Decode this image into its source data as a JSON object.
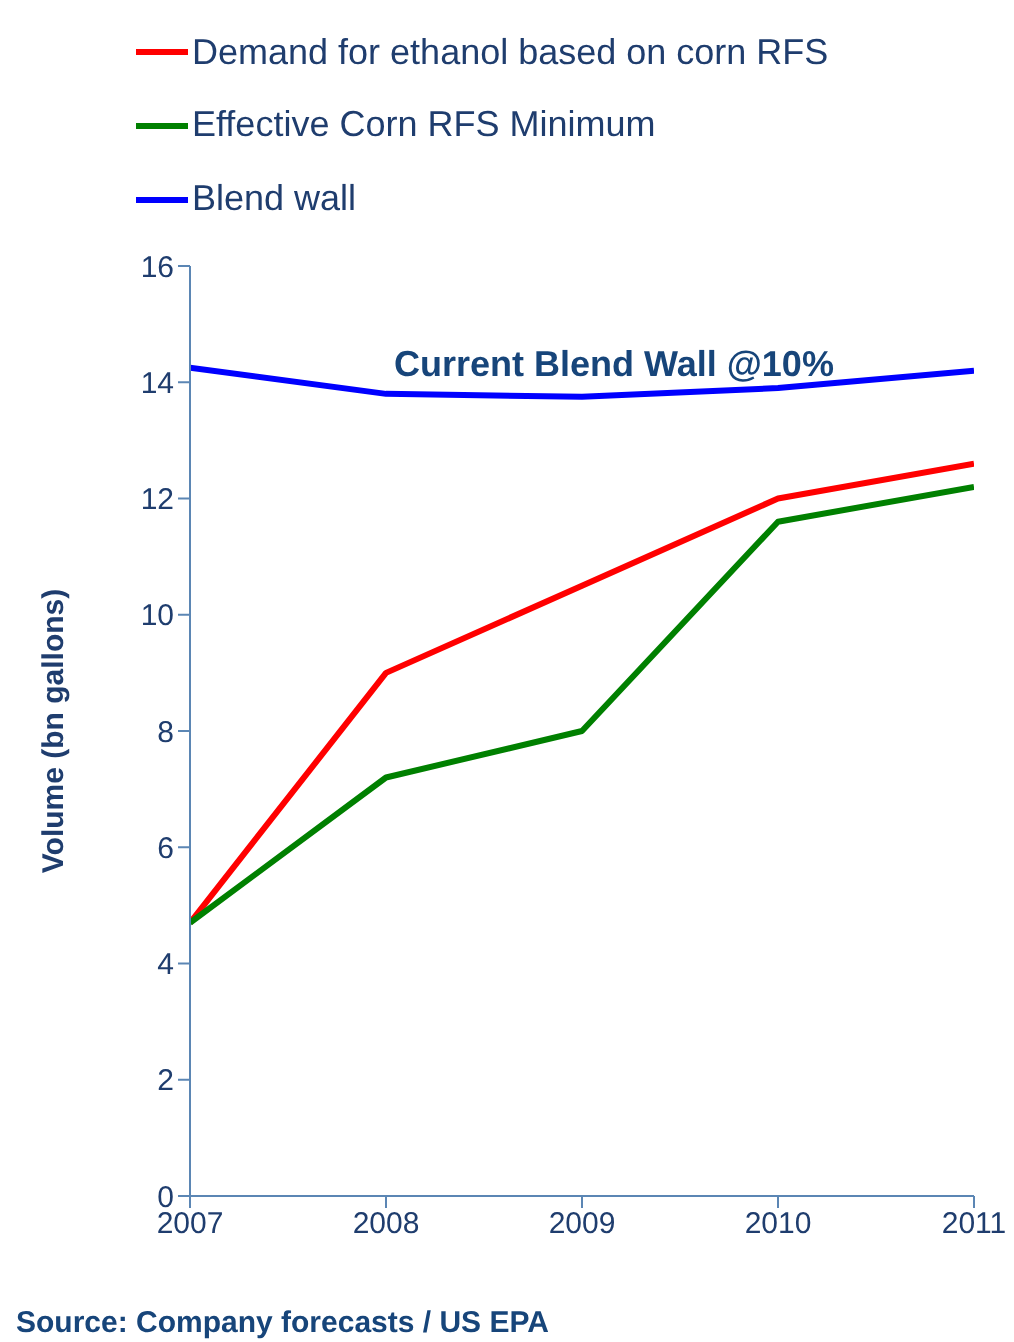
{
  "chart_data": {
    "type": "line",
    "categories": [
      "2007",
      "2008",
      "2009",
      "2010",
      "2011"
    ],
    "series": [
      {
        "name": "Demand for ethanol based on corn RFS",
        "color": "#ff0000",
        "values": [
          4.7,
          9.0,
          10.5,
          12.0,
          12.6
        ]
      },
      {
        "name": "Effective Corn RFS Minimum",
        "color": "#008000",
        "values": [
          4.7,
          7.2,
          8.0,
          11.6,
          12.2
        ]
      },
      {
        "name": "Blend wall",
        "color": "#0000ff",
        "values": [
          14.25,
          13.8,
          13.75,
          13.9,
          14.2
        ]
      }
    ],
    "ylabel": "Volume (bn gallons)",
    "ylim": [
      0,
      16
    ],
    "yticks": [
      0,
      2,
      4,
      6,
      8,
      10,
      12,
      14,
      16
    ],
    "legend": "top",
    "grid": false,
    "marker": "none",
    "line_style": "solid",
    "annotations": [
      "Current Blend Wall @10%",
      "Source: Company forecasts / US EPA"
    ]
  }
}
